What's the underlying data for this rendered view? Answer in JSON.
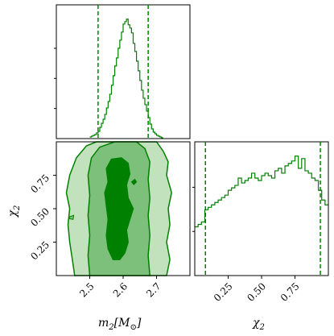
{
  "chart_data": {
    "type": "corner",
    "color": "#008000",
    "contour_fills": [
      "#c2e2bd",
      "#7cc07b",
      "#008000"
    ],
    "parameters": {
      "m2": {
        "label_main": "m",
        "label_sub": "2",
        "label_unit_open": "[M",
        "label_unit_sub": "⊙",
        "label_unit_close": "]",
        "range": [
          2.4,
          2.8
        ],
        "ticks": [
          2.5,
          2.6,
          2.7
        ],
        "tick_labels": [
          "2.5",
          "2.6",
          "2.7"
        ],
        "quantile_lines": [
          2.525,
          2.675
        ],
        "hist_bins": [
          2.5,
          2.505,
          2.51,
          2.515,
          2.52,
          2.525,
          2.53,
          2.535,
          2.54,
          2.545,
          2.55,
          2.555,
          2.56,
          2.565,
          2.57,
          2.575,
          2.58,
          2.585,
          2.59,
          2.595,
          2.6,
          2.605,
          2.61,
          2.615,
          2.62,
          2.625,
          2.63,
          2.635,
          2.64,
          2.645,
          2.65,
          2.655,
          2.66,
          2.665,
          2.67,
          2.675,
          2.68,
          2.685,
          2.69,
          2.695,
          2.7,
          2.705,
          2.71,
          2.715,
          2.72
        ],
        "hist_counts": [
          2,
          3,
          4,
          5,
          7,
          9,
          14,
          19,
          24,
          30,
          38,
          46,
          55,
          66,
          78,
          90,
          100,
          112,
          122,
          132,
          142,
          145,
          148,
          141,
          137,
          131,
          118,
          108,
          96,
          84,
          72,
          60,
          50,
          42,
          34,
          26,
          18,
          12,
          8,
          6,
          4,
          3,
          2,
          1
        ]
      },
      "chi2": {
        "label_main": "χ",
        "label_sub": "2",
        "range": [
          0,
          1
        ],
        "ticks": [
          0.25,
          0.5,
          0.75
        ],
        "tick_labels": [
          "0.25",
          "0.50",
          "0.75"
        ],
        "quantile_lines": [
          0.08,
          0.94
        ],
        "hist_bins": [
          0,
          0.025,
          0.05,
          0.075,
          0.1,
          0.125,
          0.15,
          0.175,
          0.2,
          0.225,
          0.25,
          0.275,
          0.3,
          0.325,
          0.35,
          0.375,
          0.4,
          0.425,
          0.45,
          0.475,
          0.5,
          0.525,
          0.55,
          0.575,
          0.6,
          0.625,
          0.65,
          0.675,
          0.7,
          0.725,
          0.75,
          0.775,
          0.8,
          0.825,
          0.85,
          0.875,
          0.9,
          0.925,
          0.95,
          0.975,
          1.0
        ],
        "hist_counts": [
          40,
          42,
          44,
          54,
          56,
          58,
          60,
          62,
          64,
          66,
          70,
          72,
          74,
          80,
          76,
          78,
          80,
          84,
          80,
          78,
          82,
          84,
          82,
          80,
          86,
          88,
          84,
          90,
          92,
          94,
          98,
          88,
          96,
          86,
          84,
          80,
          78,
          70,
          62,
          58
        ]
      }
    }
  }
}
